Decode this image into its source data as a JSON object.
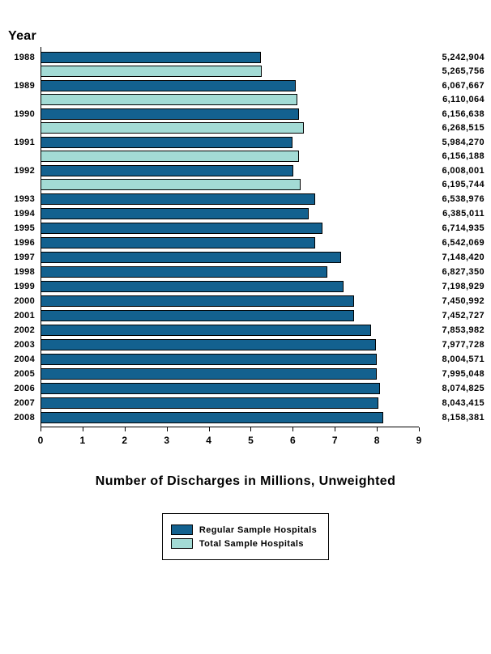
{
  "page": {
    "y_axis_title": "Year",
    "x_axis_title": "Number of Discharges in Millions, Unweighted"
  },
  "chart_data": {
    "type": "bar",
    "orientation": "horizontal",
    "title": "",
    "xlabel": "Number of Discharges in Millions, Unweighted",
    "ylabel": "Year",
    "xlim": [
      0,
      9
    ],
    "x_ticks": [
      "0",
      "1",
      "2",
      "3",
      "4",
      "5",
      "6",
      "7",
      "8",
      "9"
    ],
    "grid": false,
    "legend_position": "bottom",
    "categories": [
      "1988",
      "1989",
      "1990",
      "1991",
      "1992",
      "1993",
      "1994",
      "1995",
      "1996",
      "1997",
      "1998",
      "1999",
      "2000",
      "2001",
      "2002",
      "2003",
      "2004",
      "2005",
      "2006",
      "2007",
      "2008"
    ],
    "series": [
      {
        "name": "Regular Sample Hospitals",
        "color": "#13618f",
        "values": [
          5242904,
          6067667,
          6156638,
          5984270,
          6008001,
          6538976,
          6385011,
          6714935,
          6542069,
          7148420,
          6827350,
          7198929,
          7450992,
          7452727,
          7853982,
          7977728,
          8004571,
          7995048,
          8074825,
          8043415,
          8158381
        ],
        "labels": [
          "5,242,904",
          "6,067,667",
          "6,156,638",
          "5,984,270",
          "6,008,001",
          "6,538,976",
          "6,385,011",
          "6,714,935",
          "6,542,069",
          "7,148,420",
          "6,827,350",
          "7,198,929",
          "7,450,992",
          "7,452,727",
          "7,853,982",
          "7,977,728",
          "8,004,571",
          "7,995,048",
          "8,074,825",
          "8,043,415",
          "8,158,381"
        ]
      },
      {
        "name": "Total Sample Hospitals",
        "color": "#a3dbd5",
        "values": [
          5265756,
          6110064,
          6268515,
          6156188,
          6195744,
          null,
          null,
          null,
          null,
          null,
          null,
          null,
          null,
          null,
          null,
          null,
          null,
          null,
          null,
          null,
          null
        ],
        "labels": [
          "5,265,756",
          "6,110,064",
          "6,268,515",
          "6,156,188",
          "6,195,744",
          null,
          null,
          null,
          null,
          null,
          null,
          null,
          null,
          null,
          null,
          null,
          null,
          null,
          null,
          null,
          null
        ]
      }
    ]
  },
  "legend": {
    "items": [
      {
        "label": "Regular Sample Hospitals",
        "color": "#13618f"
      },
      {
        "label": "Total Sample Hospitals",
        "color": "#a3dbd5"
      }
    ]
  }
}
